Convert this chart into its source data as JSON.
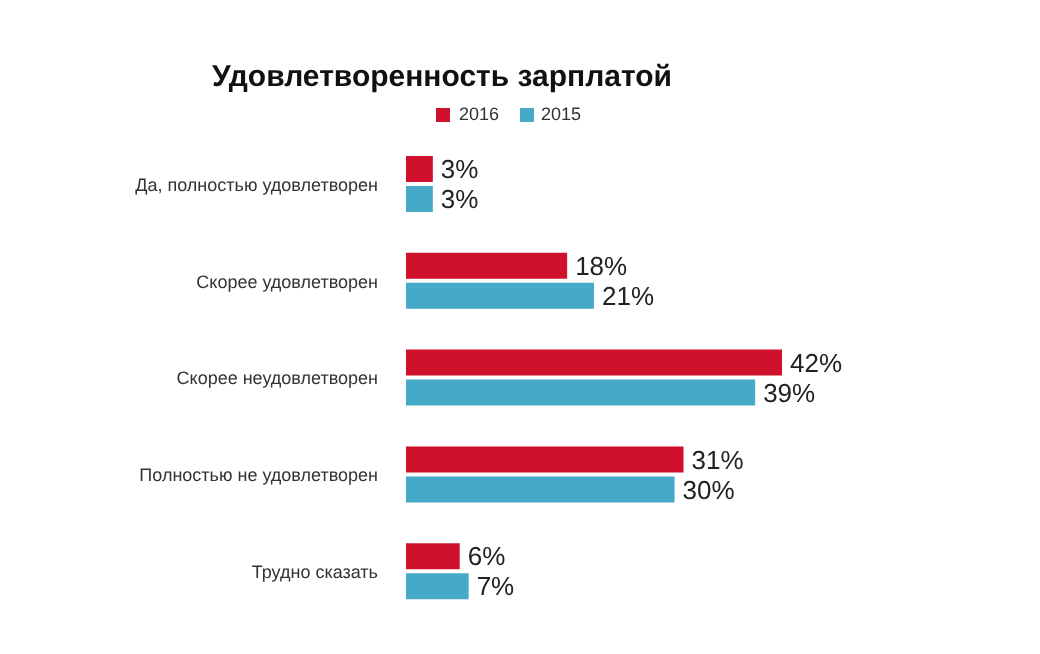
{
  "chart_data": {
    "type": "bar",
    "title": "Удовлетворенность зарплатой",
    "orientation": "horizontal",
    "tick_labels": "y",
    "legend": "top",
    "categories": [
      "Да, полностью удовлетворен",
      "Скорее удовлетворен",
      "Скорее неудовлетворен",
      "Полностью не удовлетворен",
      "Трудно сказать"
    ],
    "series": [
      {
        "name": "2016",
        "color": "#d0112b",
        "values": [
          3,
          18,
          42,
          31,
          6
        ],
        "value_labels": [
          "3%",
          "18%",
          "42%",
          "31%",
          "6%"
        ]
      },
      {
        "name": "2015",
        "color": "#45a9c8",
        "values": [
          3,
          21,
          39,
          30,
          7
        ],
        "value_labels": [
          "3%",
          "21%",
          "39%",
          "30%",
          "7%"
        ]
      }
    ]
  }
}
